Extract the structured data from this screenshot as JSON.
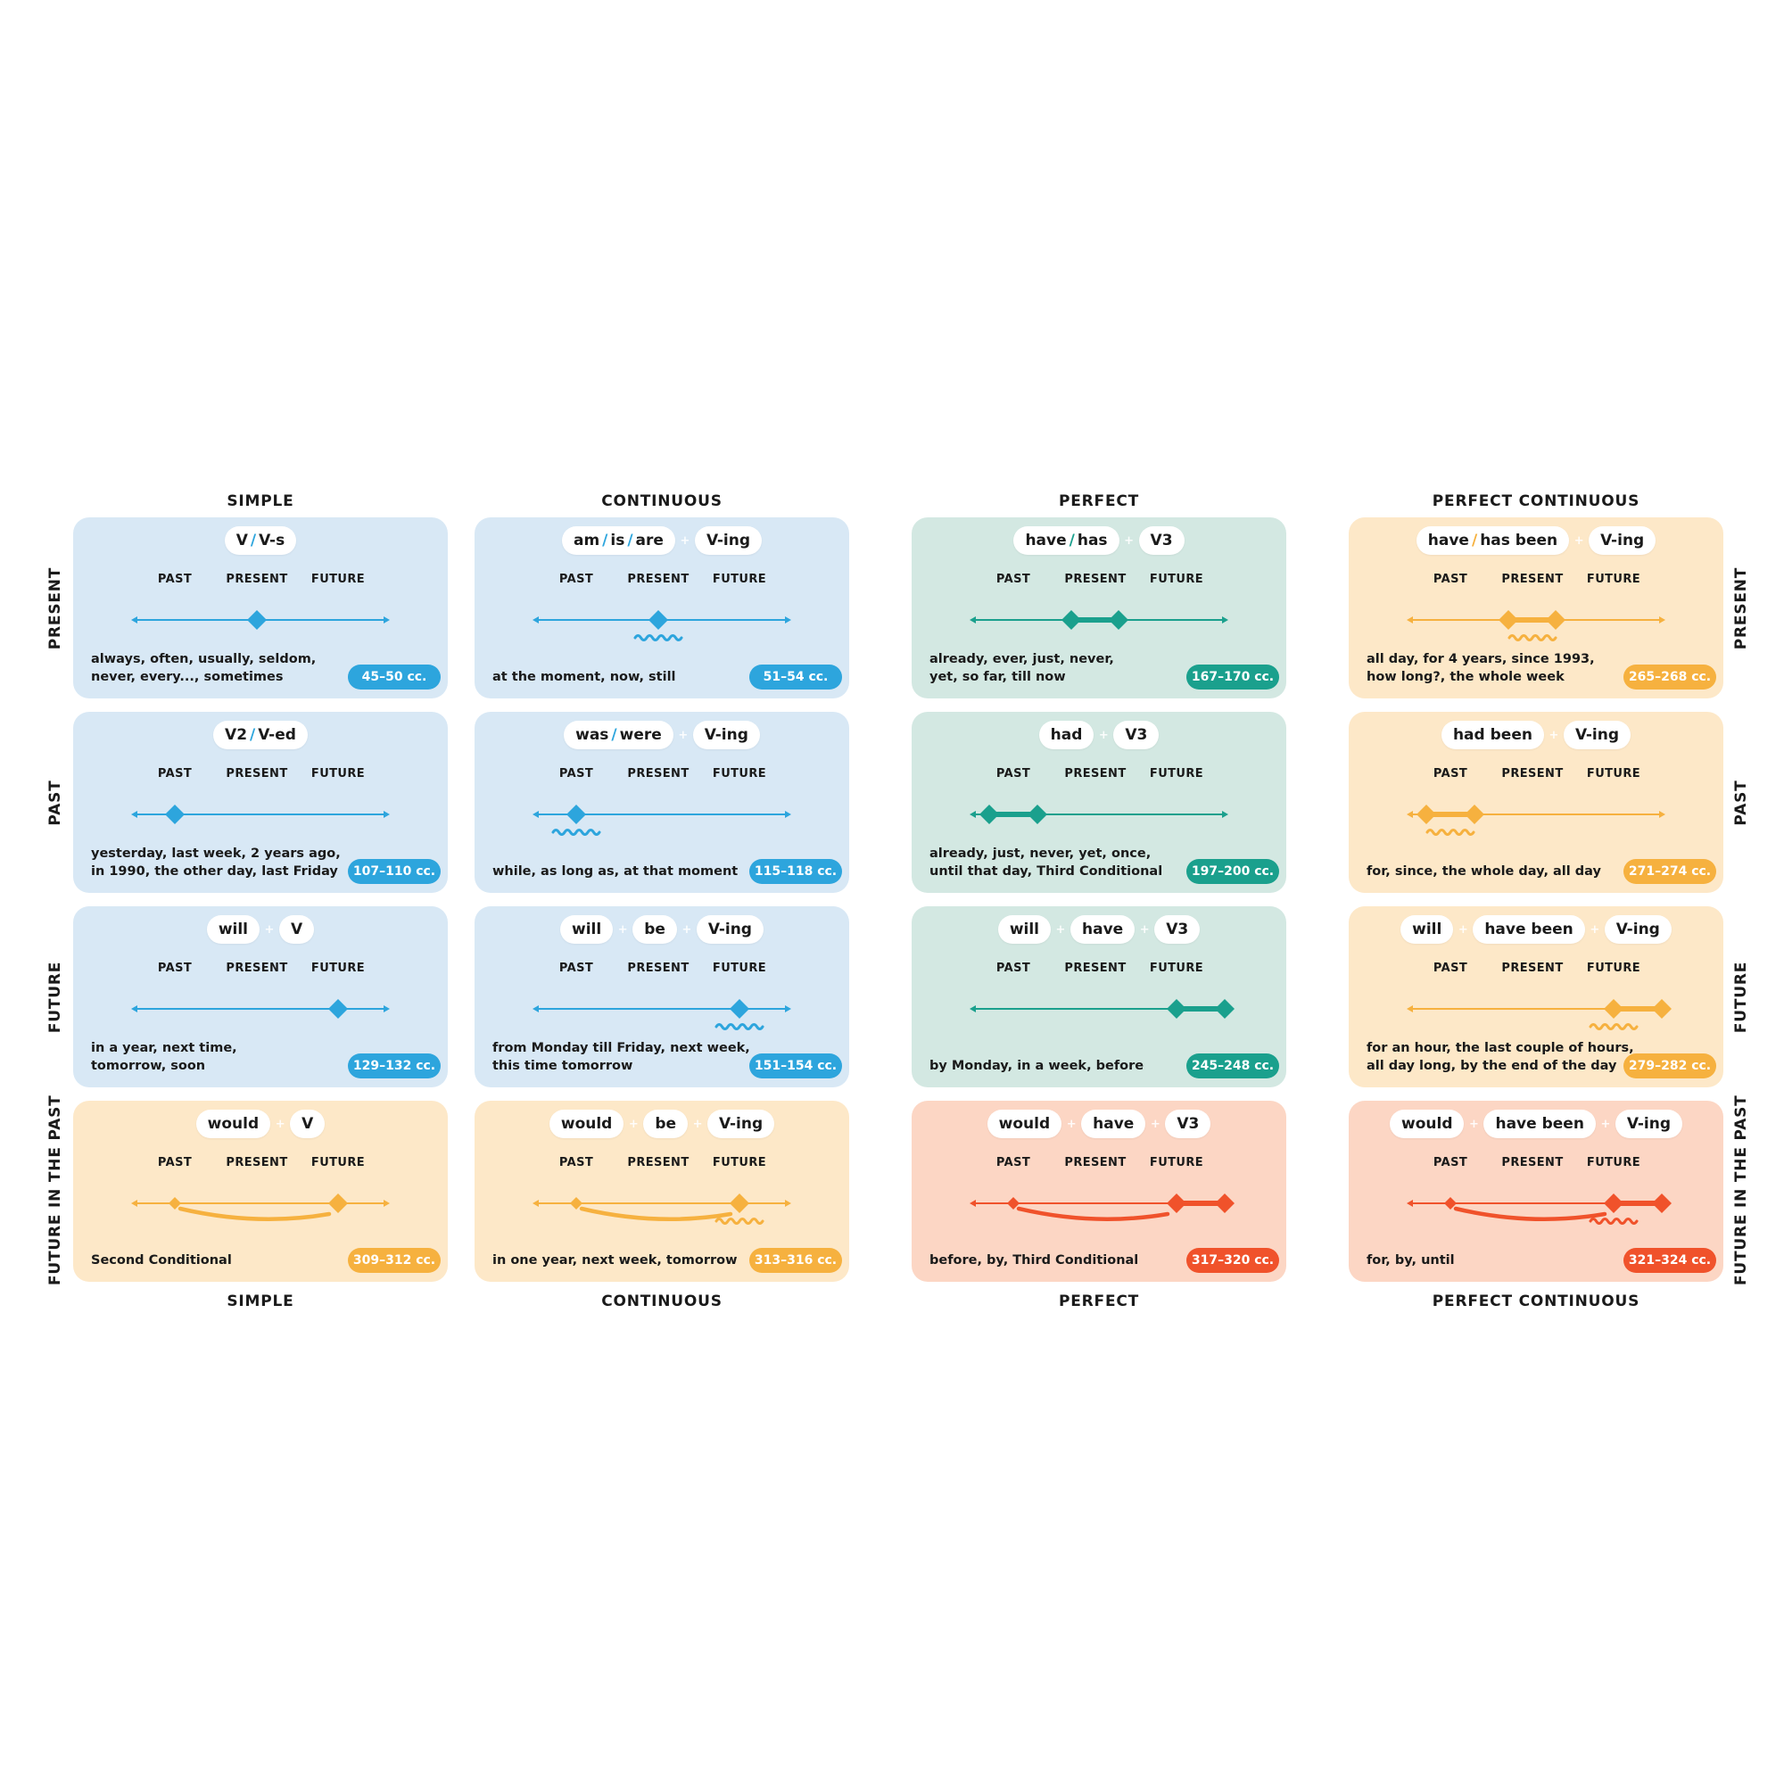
{
  "colors": {
    "blue": "#2da5dd",
    "teal": "#1aa08d",
    "orange": "#f6b13f",
    "red": "#f0522b",
    "card_blue": "#d8e8f5",
    "card_green": "#d3e8e2",
    "card_orange": "#fde8c8",
    "card_red": "#fcd6c4"
  },
  "column_headers": [
    "SIMPLE",
    "CONTINUOUS",
    "PERFECT",
    "PERFECT CONTINUOUS"
  ],
  "row_headers": [
    "PRESENT",
    "PAST",
    "FUTURE",
    "FUTURE IN THE PAST"
  ],
  "timeline_labels": {
    "past": "PAST",
    "present": "PRESENT",
    "future": "FUTURE"
  },
  "cards": [
    [
      {
        "color": "blue",
        "formula": [
          [
            "V",
            "V-s"
          ]
        ],
        "marks": {
          "points": [
            "present"
          ]
        },
        "markers": [
          "always, often, usually, seldom,",
          "never, every..., sometimes"
        ],
        "pages": "45–50 cc."
      },
      {
        "color": "blue",
        "formula": [
          [
            "am",
            "is",
            "are"
          ],
          [
            "V-ing"
          ]
        ],
        "marks": {
          "points": [
            "present"
          ],
          "wave": "present"
        },
        "markers": [
          "at the moment, now, still"
        ],
        "pages": "51–54 cc."
      },
      {
        "color": "teal",
        "formula": [
          [
            "have",
            "has"
          ],
          [
            "V3"
          ]
        ],
        "marks": {
          "points": [
            "past-present",
            "present-future"
          ],
          "segment": [
            "past-present",
            "present-future"
          ]
        },
        "markers": [
          "already, ever, just, never,",
          "yet, so far, till now"
        ],
        "pages": "167–170 cc."
      },
      {
        "color": "orange",
        "formula": [
          [
            "have",
            "has been"
          ],
          [
            "V-ing"
          ]
        ],
        "marks": {
          "points": [
            "past-present",
            "present-future"
          ],
          "segment": [
            "past-present",
            "present-future"
          ],
          "wave": "present"
        },
        "markers": [
          "all day, for 4 years, since 1993,",
          "how long?, the whole week"
        ],
        "pages": "265–268 cc."
      }
    ],
    [
      {
        "color": "blue",
        "formula": [
          [
            "V2",
            "V-ed"
          ]
        ],
        "marks": {
          "points": [
            "past"
          ]
        },
        "markers": [
          "yesterday, last week, 2 years ago,",
          "in 1990, the other day, last Friday"
        ],
        "pages": "107–110 cc."
      },
      {
        "color": "blue",
        "formula": [
          [
            "was",
            "were"
          ],
          [
            "V-ing"
          ]
        ],
        "marks": {
          "points": [
            "past"
          ],
          "wave": "past"
        },
        "markers": [
          "while, as long as, at that moment"
        ],
        "pages": "115–118 cc."
      },
      {
        "color": "teal",
        "formula": [
          [
            "had"
          ],
          [
            "V3"
          ]
        ],
        "marks": {
          "points": [
            "far-past",
            "past-mid"
          ],
          "segment": [
            "far-past",
            "past-mid"
          ]
        },
        "markers": [
          "already, just, never, yet, once,",
          "until that day, Third Conditional"
        ],
        "pages": "197–200 cc."
      },
      {
        "color": "orange",
        "formula": [
          [
            "had been"
          ],
          [
            "V-ing"
          ]
        ],
        "marks": {
          "points": [
            "far-past",
            "past-mid"
          ],
          "segment": [
            "far-past",
            "past-mid"
          ],
          "wave": "past"
        },
        "markers": [
          "for, since, the whole day, all day"
        ],
        "pages": "271–274 cc."
      }
    ],
    [
      {
        "color": "blue",
        "formula": [
          [
            "will"
          ],
          [
            "V"
          ]
        ],
        "marks": {
          "points": [
            "future"
          ]
        },
        "markers": [
          "in a year, next time,",
          "tomorrow, soon"
        ],
        "pages": "129–132 cc."
      },
      {
        "color": "blue",
        "formula": [
          [
            "will"
          ],
          [
            "be"
          ],
          [
            "V-ing"
          ]
        ],
        "marks": {
          "points": [
            "future"
          ],
          "wave": "future"
        },
        "markers": [
          "from Monday till Friday, next week,",
          "this time tomorrow"
        ],
        "pages": "151–154 cc."
      },
      {
        "color": "teal",
        "formula": [
          [
            "will"
          ],
          [
            "have"
          ],
          [
            "V3"
          ]
        ],
        "marks": {
          "points": [
            "future",
            "far-future"
          ],
          "segment": [
            "future",
            "far-future"
          ]
        },
        "markers": [
          "by Monday, in a week, before"
        ],
        "pages": "245–248 cc."
      },
      {
        "color": "orange",
        "formula": [
          [
            "will"
          ],
          [
            "have been"
          ],
          [
            "V-ing"
          ]
        ],
        "marks": {
          "points": [
            "future",
            "far-future"
          ],
          "segment": [
            "future",
            "far-future"
          ],
          "wave": "future"
        },
        "markers": [
          "for an hour, the last couple of hours,",
          "all day long, by the end of the day"
        ],
        "pages": "279–282 cc."
      }
    ],
    [
      {
        "color": "orange",
        "formula": [
          [
            "would"
          ],
          [
            "V"
          ]
        ],
        "marks": {
          "small_point": "past",
          "points": [
            "future"
          ],
          "arc": [
            "past",
            "future"
          ]
        },
        "markers": [
          "Second Conditional"
        ],
        "pages": "309–312 cc."
      },
      {
        "color": "orange",
        "formula": [
          [
            "would"
          ],
          [
            "be"
          ],
          [
            "V-ing"
          ]
        ],
        "marks": {
          "small_point": "past",
          "points": [
            "future"
          ],
          "arc": [
            "past",
            "future"
          ],
          "wave": "future"
        },
        "markers": [
          "in one year, next week, tomorrow"
        ],
        "pages": "313–316 cc."
      },
      {
        "color": "red",
        "formula": [
          [
            "would"
          ],
          [
            "have"
          ],
          [
            "V3"
          ]
        ],
        "marks": {
          "small_point": "past",
          "points": [
            "future",
            "far-future"
          ],
          "segment": [
            "future",
            "far-future"
          ],
          "arc": [
            "past",
            "future"
          ]
        },
        "markers": [
          "before, by, Third Conditional"
        ],
        "pages": "317–320 cc."
      },
      {
        "color": "red",
        "formula": [
          [
            "would"
          ],
          [
            "have been"
          ],
          [
            "V-ing"
          ]
        ],
        "marks": {
          "small_point": "past",
          "points": [
            "future",
            "far-future"
          ],
          "segment": [
            "future",
            "far-future"
          ],
          "arc": [
            "past",
            "future"
          ],
          "wave": "future"
        },
        "markers": [
          "for, by, until"
        ],
        "pages": "321–324 cc."
      }
    ]
  ]
}
